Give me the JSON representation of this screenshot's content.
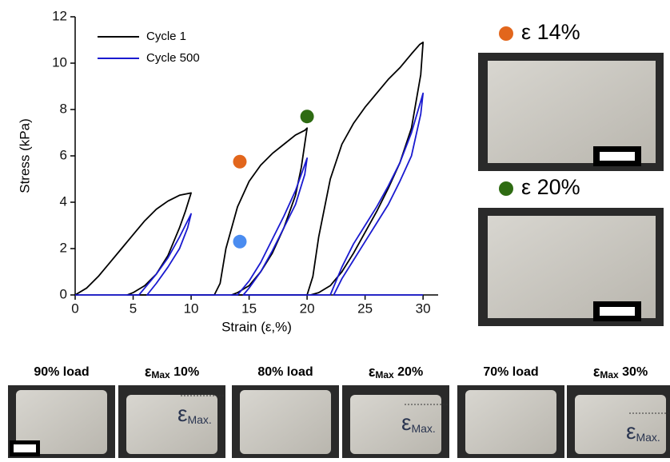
{
  "chart_data": {
    "type": "line",
    "x_label": "Strain (ε,%)",
    "y_label": "Stress (kPa)",
    "xlim": [
      0,
      31.3
    ],
    "ylim": [
      0,
      12
    ],
    "xticks": [
      0,
      5,
      10,
      15,
      20,
      25,
      30
    ],
    "yticks": [
      0,
      2,
      4,
      6,
      8,
      10,
      12
    ],
    "legend": "upper left",
    "series": [
      {
        "name": "Cycle 1",
        "color": "#000000",
        "x": [
          0,
          1,
          2,
          3,
          4,
          5,
          6,
          7,
          8,
          9,
          10,
          9.5,
          9,
          8,
          7,
          6,
          5,
          4.5,
          12,
          12.5,
          13,
          14,
          15,
          16,
          17,
          18,
          19,
          19.8,
          20,
          19.5,
          19,
          18,
          17,
          16,
          15,
          14,
          13.5,
          20,
          20.5,
          21,
          22,
          23,
          24,
          25,
          26,
          27,
          28,
          29,
          29.7,
          30,
          29.8,
          29,
          28,
          27,
          26,
          25,
          24,
          23,
          22,
          21,
          20.3
        ],
        "values": [
          0,
          0.3,
          0.8,
          1.4,
          2.0,
          2.6,
          3.2,
          3.7,
          4.05,
          4.3,
          4.4,
          3.6,
          2.9,
          1.7,
          0.9,
          0.4,
          0.1,
          0,
          0,
          0.5,
          2.0,
          3.8,
          4.9,
          5.6,
          6.1,
          6.5,
          6.9,
          7.1,
          7.2,
          5.5,
          4.3,
          2.9,
          1.8,
          1.0,
          0.4,
          0.1,
          0,
          0,
          0.8,
          2.5,
          5.0,
          6.5,
          7.4,
          8.1,
          8.7,
          9.3,
          9.8,
          10.4,
          10.8,
          10.9,
          9.5,
          7.2,
          5.7,
          4.6,
          3.6,
          2.7,
          1.8,
          1.0,
          0.4,
          0.1,
          0
        ]
      },
      {
        "name": "Cycle 500",
        "color": "#1a1ad0",
        "x": [
          0,
          5.5,
          6,
          7,
          8,
          9,
          10,
          9.7,
          9,
          8,
          7,
          6.2,
          14,
          15,
          16,
          17,
          18,
          19,
          20,
          19.8,
          19,
          18,
          17,
          16,
          15,
          14.5,
          22,
          23,
          24,
          25,
          26,
          27,
          28,
          29,
          30,
          29.8,
          29,
          28,
          27,
          26,
          25,
          24,
          23,
          22.3,
          30
        ],
        "values": [
          0,
          0,
          0.3,
          0.9,
          1.6,
          2.5,
          3.5,
          2.9,
          2.0,
          1.2,
          0.5,
          0,
          0,
          0.6,
          1.4,
          2.4,
          3.4,
          4.5,
          5.9,
          5.2,
          3.9,
          2.9,
          1.9,
          1.0,
          0.3,
          0,
          0,
          1.2,
          2.2,
          3.0,
          3.8,
          4.7,
          5.7,
          7.0,
          8.7,
          7.8,
          6.0,
          4.9,
          3.9,
          3.1,
          2.3,
          1.5,
          0.7,
          0,
          0
        ]
      }
    ],
    "markers": [
      {
        "x": 14.2,
        "y": 5.75,
        "color": "#e2661c"
      },
      {
        "x": 20,
        "y": 7.7,
        "color": "#2e6b12"
      },
      {
        "x": 14.2,
        "y": 2.3,
        "color": "#4a8cf0"
      }
    ]
  },
  "right_photos": [
    {
      "color": "#e2661c",
      "symbol": "ε",
      "value": "14%"
    },
    {
      "color": "#2e6b12",
      "symbol": "ε",
      "value": "20%"
    }
  ],
  "bottom_photos": [
    {
      "label": "90% load"
    },
    {
      "symbol": "ε",
      "subscript": "Max",
      "value": "10%",
      "mark": "ε",
      "mark_sub": "Max."
    },
    {
      "label": "80% load"
    },
    {
      "symbol": "ε",
      "subscript": "Max",
      "value": "20%",
      "mark": "ε",
      "mark_sub": "Max."
    },
    {
      "label": "70% load"
    },
    {
      "symbol": "ε",
      "subscript": "Max",
      "value": "30%",
      "mark": "ε",
      "mark_sub": "Max."
    }
  ]
}
